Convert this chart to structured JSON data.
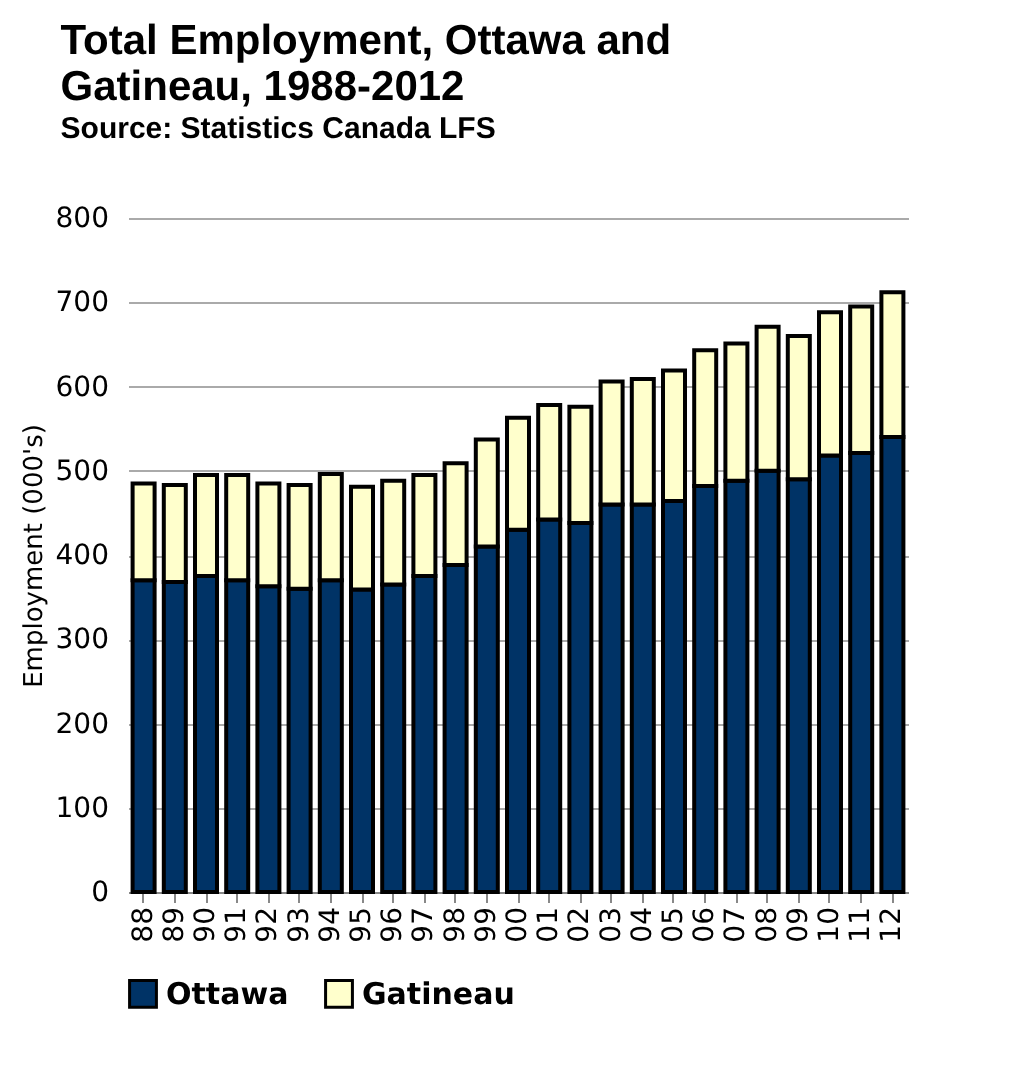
{
  "chart_data": {
    "type": "bar",
    "title": "Total Employment, Ottawa and Gatineau, 1988-2012",
    "subtitle": "Source: Statistics Canada LFS",
    "ylabel": "Employment (000's)",
    "categories": [
      "88",
      "89",
      "90",
      "91",
      "92",
      "93",
      "94",
      "95",
      "96",
      "97",
      "98",
      "99",
      "00",
      "01",
      "02",
      "03",
      "04",
      "05",
      "06",
      "07",
      "08",
      "09",
      "10",
      "11",
      "12"
    ],
    "series": [
      {
        "name": "Ottawa",
        "color": "#003366",
        "values": [
          370,
          368,
          375,
          370,
          363,
          360,
          370,
          359,
          365,
          375,
          388,
          410,
          430,
          442,
          438,
          460,
          460,
          464,
          482,
          488,
          500,
          490,
          518,
          521,
          540
        ]
      },
      {
        "name": "Gatineau",
        "color": "#ffffcc",
        "values": [
          115,
          115,
          120,
          125,
          122,
          123,
          126,
          122,
          123,
          120,
          121,
          127,
          133,
          136,
          138,
          146,
          149,
          155,
          161,
          163,
          171,
          170,
          170,
          174,
          172
        ]
      }
    ],
    "stacked": true,
    "ylim": [
      0,
      800
    ],
    "yticks": [
      0,
      100,
      200,
      300,
      400,
      500,
      600,
      700,
      800
    ],
    "grid": "y",
    "legend": "bottom"
  }
}
